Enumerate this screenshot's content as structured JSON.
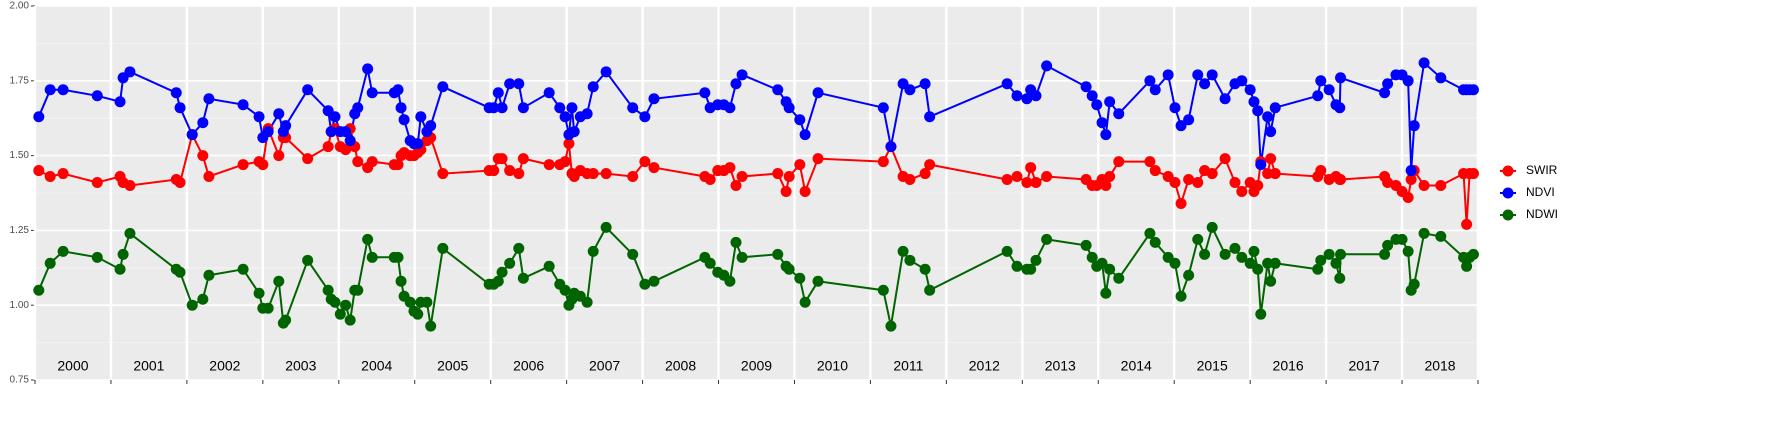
{
  "chart_data": {
    "type": "line",
    "x": [
      2000.05,
      2000.2,
      2000.37,
      2000.82,
      2001.12,
      2001.16,
      2001.25,
      2001.86,
      2001.91,
      2002.07,
      2002.21,
      2002.29,
      2002.74,
      2002.95,
      2003.0,
      2003.07,
      2003.21,
      2003.27,
      2003.3,
      2003.59,
      2003.86,
      2003.9,
      2003.95,
      2004.02,
      2004.09,
      2004.15,
      2004.21,
      2004.25,
      2004.38,
      2004.44,
      2004.73,
      2004.78,
      2004.82,
      2004.86,
      2004.94,
      2004.99,
      2005.04,
      2005.08,
      2005.16,
      2005.21,
      2005.37,
      2005.98,
      2006.04,
      2006.1,
      2006.15,
      2006.25,
      2006.37,
      2006.43,
      2006.77,
      2006.91,
      2006.98,
      2007.03,
      2007.07,
      2007.1,
      2007.18,
      2007.27,
      2007.35,
      2007.52,
      2007.87,
      2008.03,
      2008.15,
      2008.82,
      2008.89,
      2008.99,
      2009.07,
      2009.15,
      2009.23,
      2009.31,
      2009.78,
      2009.89,
      2009.93,
      2010.07,
      2010.14,
      2010.31,
      2011.17,
      2011.27,
      2011.43,
      2011.52,
      2011.72,
      2011.78,
      2012.8,
      2012.93,
      2013.06,
      2013.11,
      2013.18,
      2013.32,
      2013.84,
      2013.92,
      2013.98,
      2014.05,
      2014.1,
      2014.15,
      2014.27,
      2014.68,
      2014.75,
      2014.92,
      2015.01,
      2015.09,
      2015.19,
      2015.31,
      2015.4,
      2015.5,
      2015.67,
      2015.8,
      2015.89,
      2016.0,
      2016.05,
      2016.1,
      2016.14,
      2016.23,
      2016.27,
      2016.33,
      2016.89,
      2016.93,
      2017.04,
      2017.13,
      2017.18,
      2017.19,
      2017.77,
      2017.81,
      2017.92,
      2018.0,
      2018.08,
      2018.12,
      2018.16,
      2018.29,
      2018.51,
      2018.81,
      2018.85,
      2018.89,
      2018.94
    ],
    "series": [
      {
        "name": "SWIR",
        "color": "#ff0000",
        "values": [
          1.45,
          1.43,
          1.44,
          1.41,
          1.43,
          1.41,
          1.4,
          1.42,
          1.41,
          1.57,
          1.5,
          1.43,
          1.47,
          1.48,
          1.47,
          1.59,
          1.5,
          1.56,
          1.56,
          1.49,
          1.53,
          1.58,
          1.59,
          1.53,
          1.52,
          1.59,
          1.53,
          1.48,
          1.46,
          1.48,
          1.47,
          1.47,
          1.5,
          1.51,
          1.5,
          1.5,
          1.51,
          1.52,
          1.55,
          1.56,
          1.44,
          1.45,
          1.45,
          1.49,
          1.49,
          1.45,
          1.44,
          1.49,
          1.47,
          1.47,
          1.48,
          1.54,
          1.44,
          1.43,
          1.45,
          1.44,
          1.44,
          1.44,
          1.43,
          1.48,
          1.46,
          1.43,
          1.42,
          1.45,
          1.45,
          1.46,
          1.4,
          1.43,
          1.44,
          1.38,
          1.43,
          1.47,
          1.38,
          1.49,
          1.48,
          1.53,
          1.43,
          1.42,
          1.44,
          1.47,
          1.42,
          1.43,
          1.41,
          1.46,
          1.41,
          1.43,
          1.42,
          1.4,
          1.4,
          1.42,
          1.4,
          1.43,
          1.48,
          1.48,
          1.45,
          1.43,
          1.41,
          1.34,
          1.42,
          1.41,
          1.45,
          1.44,
          1.49,
          1.41,
          1.38,
          1.41,
          1.38,
          1.4,
          1.48,
          1.44,
          1.49,
          1.44,
          1.43,
          1.45,
          1.42,
          1.43,
          1.42,
          1.42,
          1.43,
          1.41,
          1.4,
          1.38,
          1.36,
          1.42,
          1.45,
          1.4,
          1.4,
          1.44,
          1.27,
          1.44,
          1.44
        ]
      },
      {
        "name": "NDVI",
        "color": "#0000ff",
        "values": [
          1.63,
          1.72,
          1.72,
          1.7,
          1.68,
          1.76,
          1.78,
          1.71,
          1.66,
          1.57,
          1.61,
          1.69,
          1.67,
          1.63,
          1.56,
          1.58,
          1.64,
          1.58,
          1.6,
          1.72,
          1.65,
          1.58,
          1.63,
          1.58,
          1.58,
          1.55,
          1.64,
          1.66,
          1.79,
          1.71,
          1.71,
          1.72,
          1.66,
          1.62,
          1.55,
          1.54,
          1.54,
          1.63,
          1.58,
          1.6,
          1.73,
          1.66,
          1.66,
          1.71,
          1.66,
          1.74,
          1.74,
          1.66,
          1.71,
          1.66,
          1.63,
          1.57,
          1.66,
          1.58,
          1.63,
          1.64,
          1.73,
          1.78,
          1.66,
          1.63,
          1.69,
          1.71,
          1.66,
          1.67,
          1.67,
          1.66,
          1.74,
          1.77,
          1.72,
          1.68,
          1.66,
          1.62,
          1.57,
          1.71,
          1.66,
          1.53,
          1.74,
          1.72,
          1.74,
          1.63,
          1.74,
          1.7,
          1.69,
          1.72,
          1.7,
          1.8,
          1.73,
          1.7,
          1.67,
          1.61,
          1.57,
          1.68,
          1.64,
          1.75,
          1.72,
          1.77,
          1.66,
          1.6,
          1.62,
          1.77,
          1.74,
          1.77,
          1.69,
          1.74,
          1.75,
          1.72,
          1.68,
          1.65,
          1.47,
          1.63,
          1.58,
          1.66,
          1.7,
          1.75,
          1.72,
          1.67,
          1.66,
          1.76,
          1.71,
          1.74,
          1.77,
          1.77,
          1.75,
          1.45,
          1.6,
          1.81,
          1.76,
          1.72,
          1.72,
          1.72,
          1.72
        ]
      },
      {
        "name": "NDWI",
        "color": "#006400",
        "values": [
          1.05,
          1.14,
          1.18,
          1.16,
          1.12,
          1.17,
          1.24,
          1.12,
          1.11,
          1.0,
          1.02,
          1.1,
          1.12,
          1.04,
          0.99,
          0.99,
          1.08,
          0.94,
          0.95,
          1.15,
          1.05,
          1.02,
          1.01,
          0.97,
          1.0,
          0.95,
          1.05,
          1.05,
          1.22,
          1.16,
          1.16,
          1.16,
          1.08,
          1.03,
          1.01,
          0.98,
          0.97,
          1.01,
          1.01,
          0.93,
          1.19,
          1.07,
          1.07,
          1.08,
          1.11,
          1.14,
          1.19,
          1.09,
          1.13,
          1.07,
          1.05,
          1.0,
          1.02,
          1.04,
          1.03,
          1.01,
          1.18,
          1.26,
          1.17,
          1.07,
          1.08,
          1.16,
          1.14,
          1.11,
          1.1,
          1.08,
          1.21,
          1.16,
          1.17,
          1.13,
          1.12,
          1.09,
          1.01,
          1.08,
          1.05,
          0.93,
          1.18,
          1.15,
          1.12,
          1.05,
          1.18,
          1.13,
          1.12,
          1.12,
          1.15,
          1.22,
          1.2,
          1.16,
          1.13,
          1.14,
          1.04,
          1.12,
          1.09,
          1.24,
          1.21,
          1.16,
          1.14,
          1.03,
          1.1,
          1.22,
          1.17,
          1.26,
          1.17,
          1.19,
          1.16,
          1.14,
          1.18,
          1.12,
          0.97,
          1.14,
          1.08,
          1.14,
          1.12,
          1.15,
          1.17,
          1.14,
          1.09,
          1.17,
          1.17,
          1.2,
          1.22,
          1.22,
          1.18,
          1.05,
          1.07,
          1.24,
          1.23,
          1.16,
          1.13,
          1.16,
          1.17
        ]
      }
    ],
    "xlim": [
      2000,
      2019
    ],
    "xticks": [
      2000,
      2001,
      2002,
      2003,
      2004,
      2005,
      2006,
      2007,
      2008,
      2009,
      2010,
      2011,
      2012,
      2013,
      2014,
      2015,
      2016,
      2017,
      2018,
      2019
    ],
    "year_labels": [
      2000,
      2001,
      2002,
      2003,
      2004,
      2005,
      2006,
      2007,
      2008,
      2009,
      2010,
      2011,
      2012,
      2013,
      2014,
      2015,
      2016,
      2017,
      2018
    ],
    "ylim": [
      0.75,
      2.0
    ],
    "yticks": [
      {
        "value": 0.75,
        "label": "0.75"
      },
      {
        "value": 1.0,
        "label": "1.00"
      },
      {
        "value": 1.25,
        "label": "1.25"
      },
      {
        "value": 1.5,
        "label": "1.50"
      },
      {
        "value": 1.75,
        "label": "1.75"
      },
      {
        "value": 2.0,
        "label": "2.00"
      }
    ],
    "grid": true,
    "legend": "right"
  }
}
